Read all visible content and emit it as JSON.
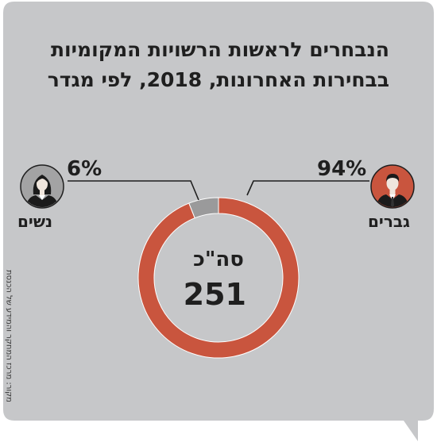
{
  "title_lines": [
    "הנבחרים לראשות הרשויות המקומיות",
    "בבחירות האחרונות, 2018, לפי מגדר"
  ],
  "colors": {
    "background": "#c6c7c9",
    "men": "#c9553e",
    "women": "#9a9a9b",
    "avatar_men_bg": "#c9553e",
    "avatar_women_bg": "#a3a3a4"
  },
  "labels": {
    "men": "גברים",
    "women": "נשים",
    "men_pct": "94%",
    "women_pct": "6%",
    "total_caption": "סה\"כ",
    "total_value": "251"
  },
  "source": "מקור: מרכז המחקר והמידע של הכנסת",
  "icons": {
    "men": "man-avatar-icon",
    "women": "woman-avatar-icon"
  },
  "chart_data": {
    "type": "pie",
    "title": "הנבחרים לראשות הרשויות המקומיות בבחירות האחרונות, 2018, לפי מגדר",
    "total": 251,
    "slices": [
      {
        "label": "גברים",
        "value": 94,
        "unit": "%"
      },
      {
        "label": "נשים",
        "value": 6,
        "unit": "%"
      }
    ]
  }
}
